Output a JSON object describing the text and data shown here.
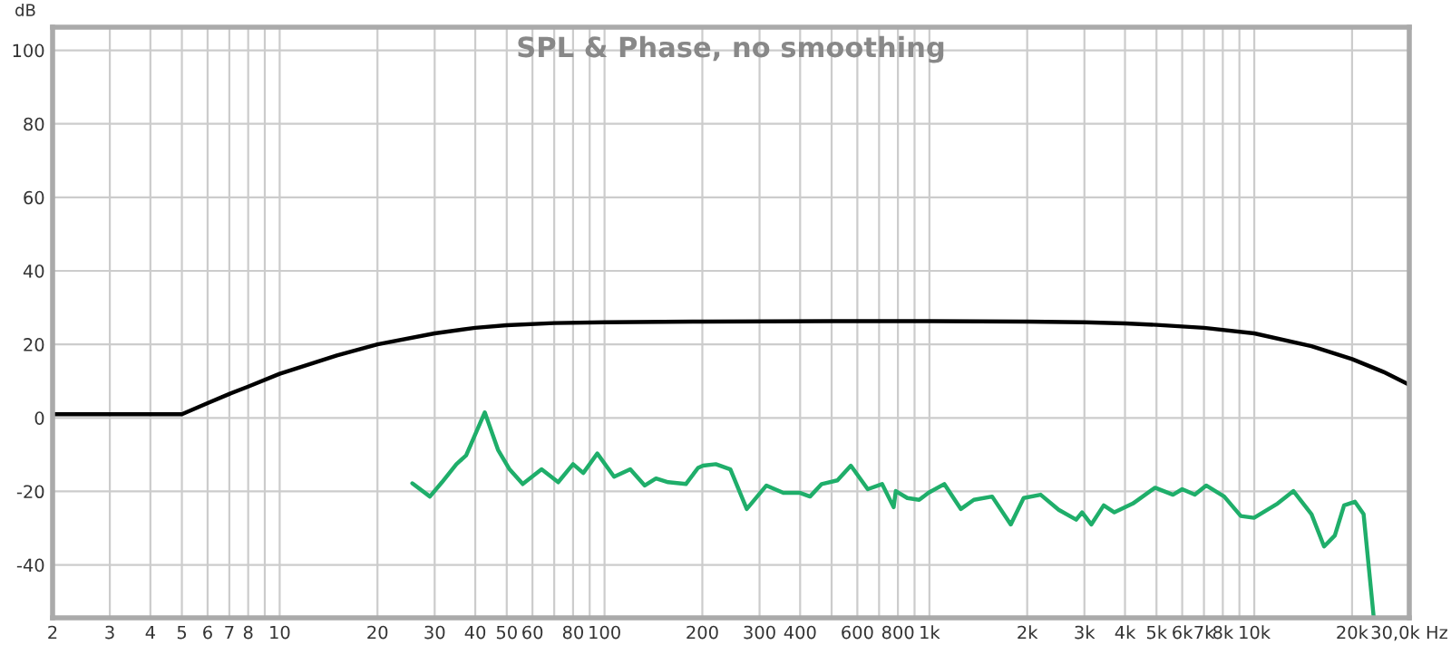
{
  "chart_data": {
    "type": "line",
    "title": "SPL & Phase, no smoothing",
    "ylabel": "dB",
    "log": "x",
    "grid": true,
    "marker": "none",
    "line_style": "solid",
    "xlim": [
      2,
      30000
    ],
    "ylim": [
      -54.4,
      106.3
    ],
    "xticks": [
      2,
      3,
      4,
      5,
      6,
      7,
      8,
      {
        "value": 9,
        "label": null
      },
      10,
      20,
      30,
      40,
      50,
      60,
      {
        "value": 70,
        "label": null
      },
      80,
      {
        "value": 90,
        "label": null
      },
      100,
      200,
      300,
      400,
      {
        "value": 500,
        "label": null
      },
      600,
      {
        "value": 700,
        "label": null
      },
      800,
      {
        "value": 900,
        "label": null
      },
      {
        "value": 1000,
        "label": "1k"
      },
      {
        "value": 2000,
        "label": "2k"
      },
      {
        "value": 3000,
        "label": "3k"
      },
      {
        "value": 4000,
        "label": "4k"
      },
      {
        "value": 5000,
        "label": "5k"
      },
      {
        "value": 6000,
        "label": "6k"
      },
      {
        "value": 7000,
        "label": "7k"
      },
      {
        "value": 8000,
        "label": "8k"
      },
      {
        "value": 9000,
        "label": null
      },
      {
        "value": 10000,
        "label": "10k"
      },
      {
        "value": 20000,
        "label": "20k"
      },
      {
        "value": 30000,
        "label": "30,0k Hz"
      }
    ],
    "yticks": [
      -40,
      -20,
      0,
      20,
      40,
      60,
      80,
      100
    ],
    "series": [
      {
        "color": "#000000",
        "x": [
          2,
          5,
          6,
          7,
          8,
          10,
          15,
          20,
          30,
          40,
          50,
          70,
          100,
          200,
          500,
          1000,
          2000,
          3000,
          4000,
          5000,
          7000,
          10000,
          15000,
          20000,
          25000,
          30000
        ],
        "values": [
          1,
          1,
          4,
          6.5,
          8.5,
          12,
          17,
          20,
          23,
          24.5,
          25.2,
          25.8,
          26,
          26.2,
          26.3,
          26.3,
          26.2,
          26,
          25.7,
          25.3,
          24.5,
          23,
          19.5,
          16,
          12.5,
          9
        ]
      },
      {
        "color": "#1fae6a",
        "x": [
          25.6,
          29,
          31.6,
          35,
          37.5,
          42.8,
          47,
          51,
          56,
          64,
          72,
          80,
          86,
          95,
          107,
          120,
          133,
          144,
          157,
          178,
          194,
          201,
          220,
          244,
          274,
          315,
          355,
          400,
          429,
          466,
          521,
          573,
          646,
          715,
          776,
          788,
          855,
          930,
          993,
          1111,
          1250,
          1370,
          1560,
          1780,
          1950,
          2200,
          2500,
          2830,
          2950,
          3150,
          3440,
          3710,
          4230,
          4950,
          5620,
          6000,
          6560,
          7110,
          8080,
          9090,
          9980,
          11800,
          13200,
          15000,
          16400,
          17700,
          18900,
          20400,
          21700,
          23300
        ],
        "values": [
          -17.8,
          -21.4,
          -17.5,
          -12.6,
          -10.2,
          1.5,
          -8.7,
          -14,
          -18,
          -14,
          -17.5,
          -12.6,
          -15,
          -9.7,
          -16,
          -14,
          -18.4,
          -16.5,
          -17.5,
          -18,
          -13.6,
          -13,
          -12.6,
          -14,
          -24.8,
          -18.4,
          -20.4,
          -20.4,
          -21.4,
          -18,
          -17,
          -13,
          -19.4,
          -18,
          -24.3,
          -19.9,
          -21.8,
          -22.3,
          -20.4,
          -18,
          -24.8,
          -22.3,
          -21.4,
          -29,
          -21.8,
          -20.9,
          -25,
          -27.7,
          -25.7,
          -29,
          -23.8,
          -25.7,
          -23.3,
          -19,
          -20.9,
          -19.4,
          -20.9,
          -18.4,
          -21.4,
          -26.7,
          -27.2,
          -23.3,
          -19.9,
          -26.2,
          -35,
          -32,
          -23.8,
          -22.8,
          -26.2,
          -54
        ]
      }
    ]
  }
}
